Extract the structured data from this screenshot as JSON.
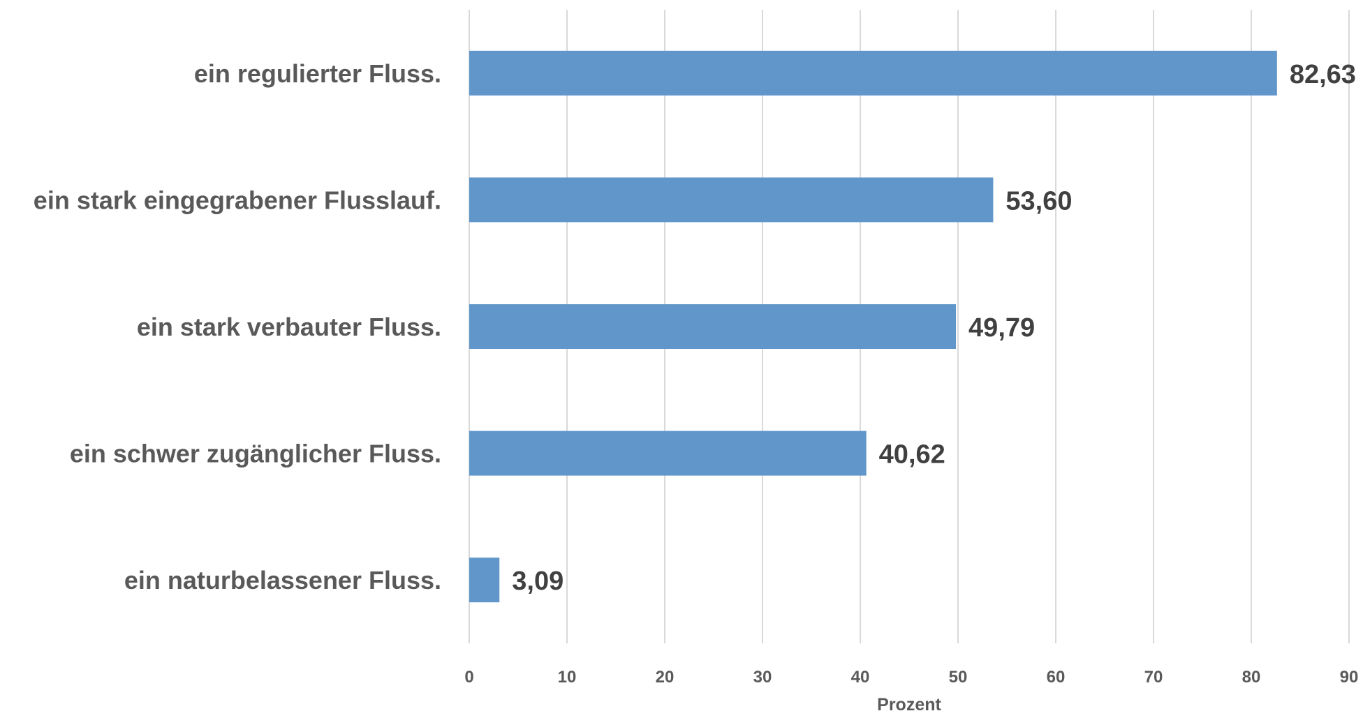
{
  "chart_data": {
    "type": "bar",
    "orientation": "horizontal",
    "categories": [
      "ein regulierter Fluss.",
      "ein stark eingegrabener Flusslauf.",
      "ein stark verbauter Fluss.",
      "ein schwer zugänglicher Fluss.",
      "ein naturbelassener Fluss."
    ],
    "values": [
      82.63,
      53.6,
      49.79,
      40.62,
      3.09
    ],
    "value_labels": [
      "82,63",
      "53,60",
      "49,79",
      "40,62",
      "3,09"
    ],
    "xlabel": "Prozent",
    "xlim": [
      0,
      90
    ],
    "xticks": [
      0,
      10,
      20,
      30,
      40,
      50,
      60,
      70,
      80,
      90
    ],
    "grid": true,
    "bar_color": "#6096c9"
  }
}
